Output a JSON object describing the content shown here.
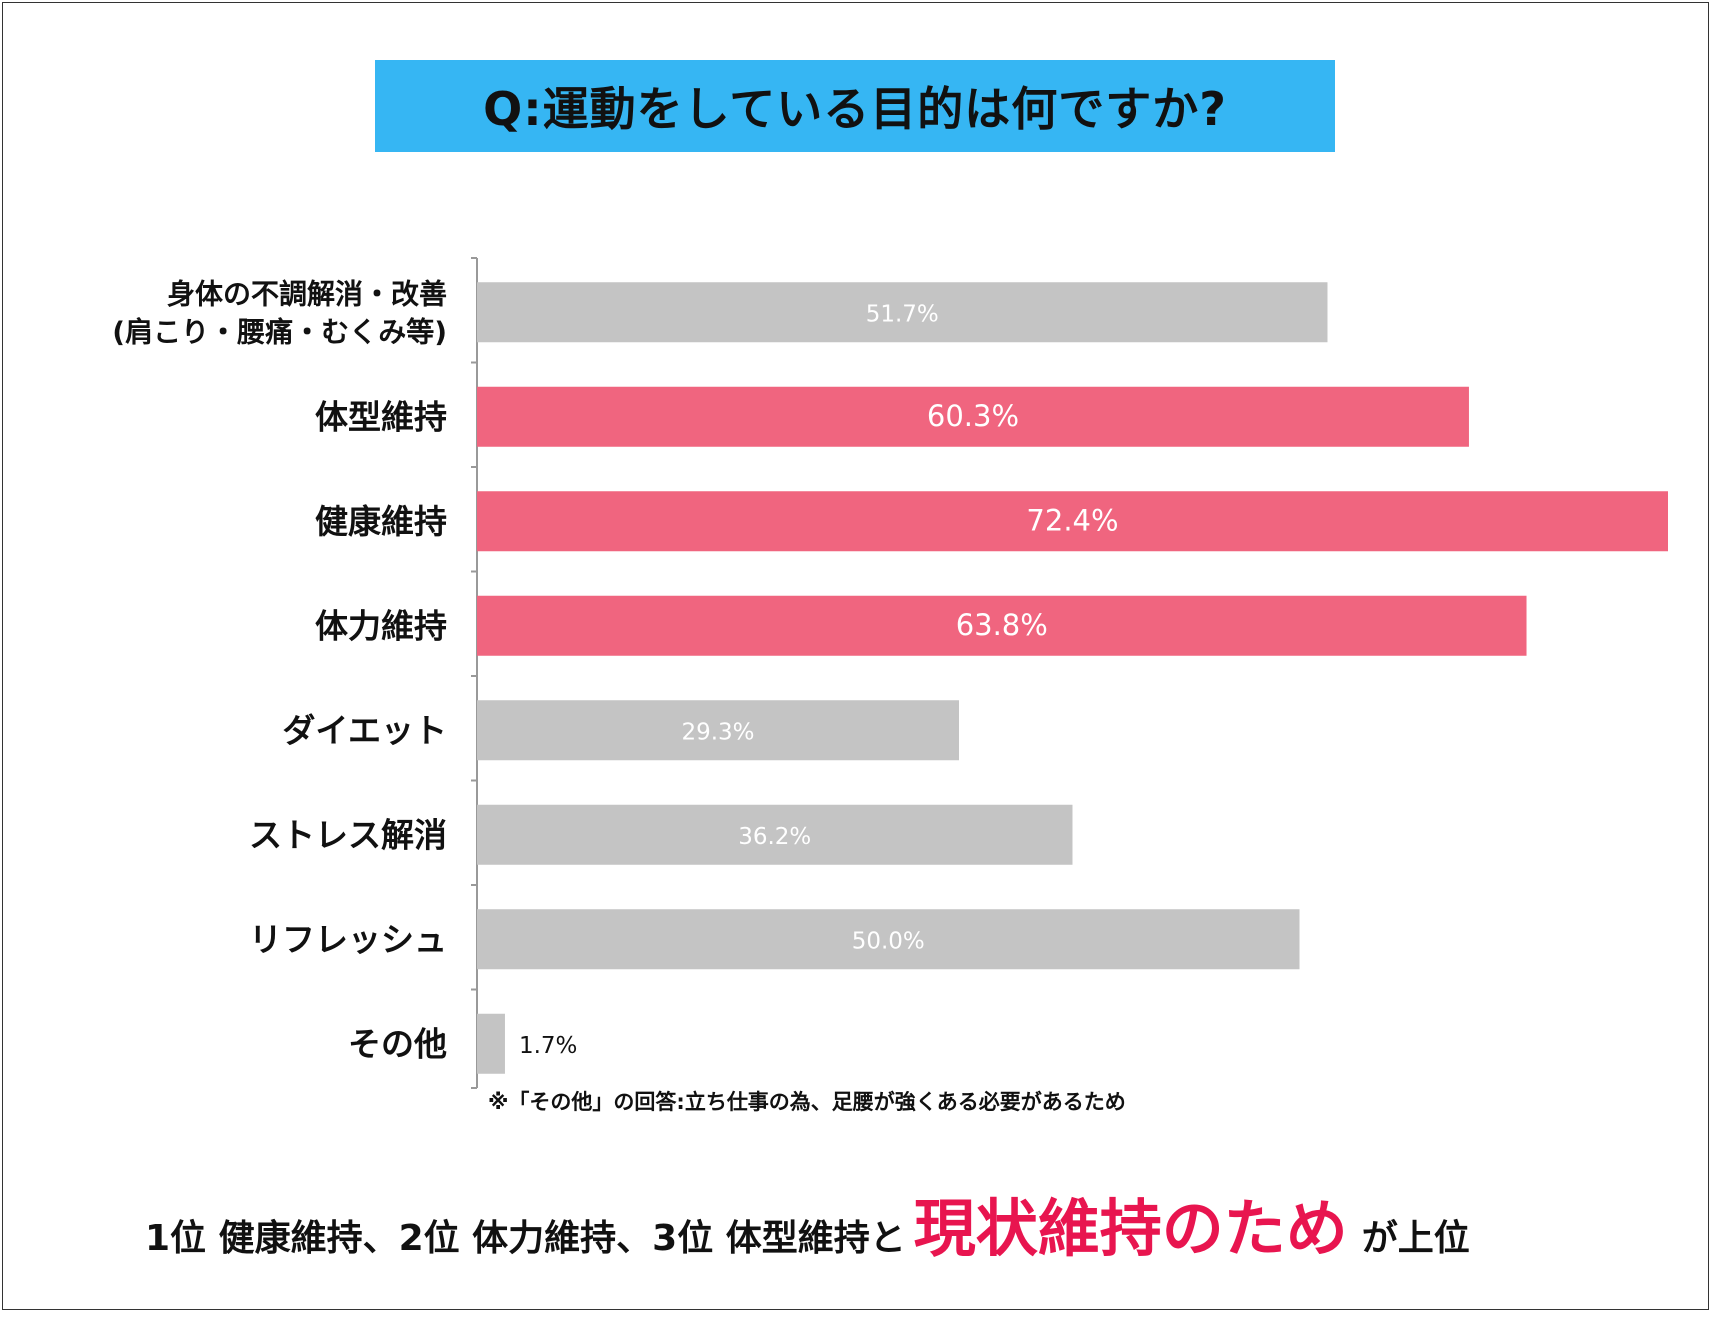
{
  "title": "Q:運動をしている目的は何ですか?",
  "footnote": "※「その他」の回答:立ち仕事の為、足腰が強くある必要があるため",
  "summary": {
    "prefix": "1位 健康維持、2位 体力維持、3位 体型維持と",
    "highlight": "現状維持のため",
    "suffix": "が上位"
  },
  "colors": {
    "highlight_bar": "#f0657f",
    "normal_bar": "#c4c4c4",
    "title_bg": "#36b6f3",
    "summary_highlight": "#e8154f"
  },
  "chart_data": {
    "type": "bar",
    "orientation": "horizontal",
    "title": "Q:運動をしている目的は何ですか?",
    "xlabel": "",
    "ylabel": "",
    "xlim": [
      0,
      72.4
    ],
    "grid": false,
    "categories": [
      [
        "身体の不調解消・改善",
        "(肩こり・腰痛・むくみ等)"
      ],
      [
        "体型維持"
      ],
      [
        "健康維持"
      ],
      [
        "体力維持"
      ],
      [
        "ダイエット"
      ],
      [
        "ストレス解消"
      ],
      [
        "リフレッシュ"
      ],
      [
        "その他"
      ]
    ],
    "values": [
      51.7,
      60.3,
      72.4,
      63.8,
      29.3,
      36.2,
      50.0,
      1.7
    ],
    "value_labels": [
      "51.7%",
      "60.3%",
      "72.4%",
      "63.8%",
      "29.3%",
      "36.2%",
      "50.0%",
      "1.7%"
    ],
    "highlighted": [
      false,
      true,
      true,
      true,
      false,
      false,
      false,
      false
    ]
  }
}
